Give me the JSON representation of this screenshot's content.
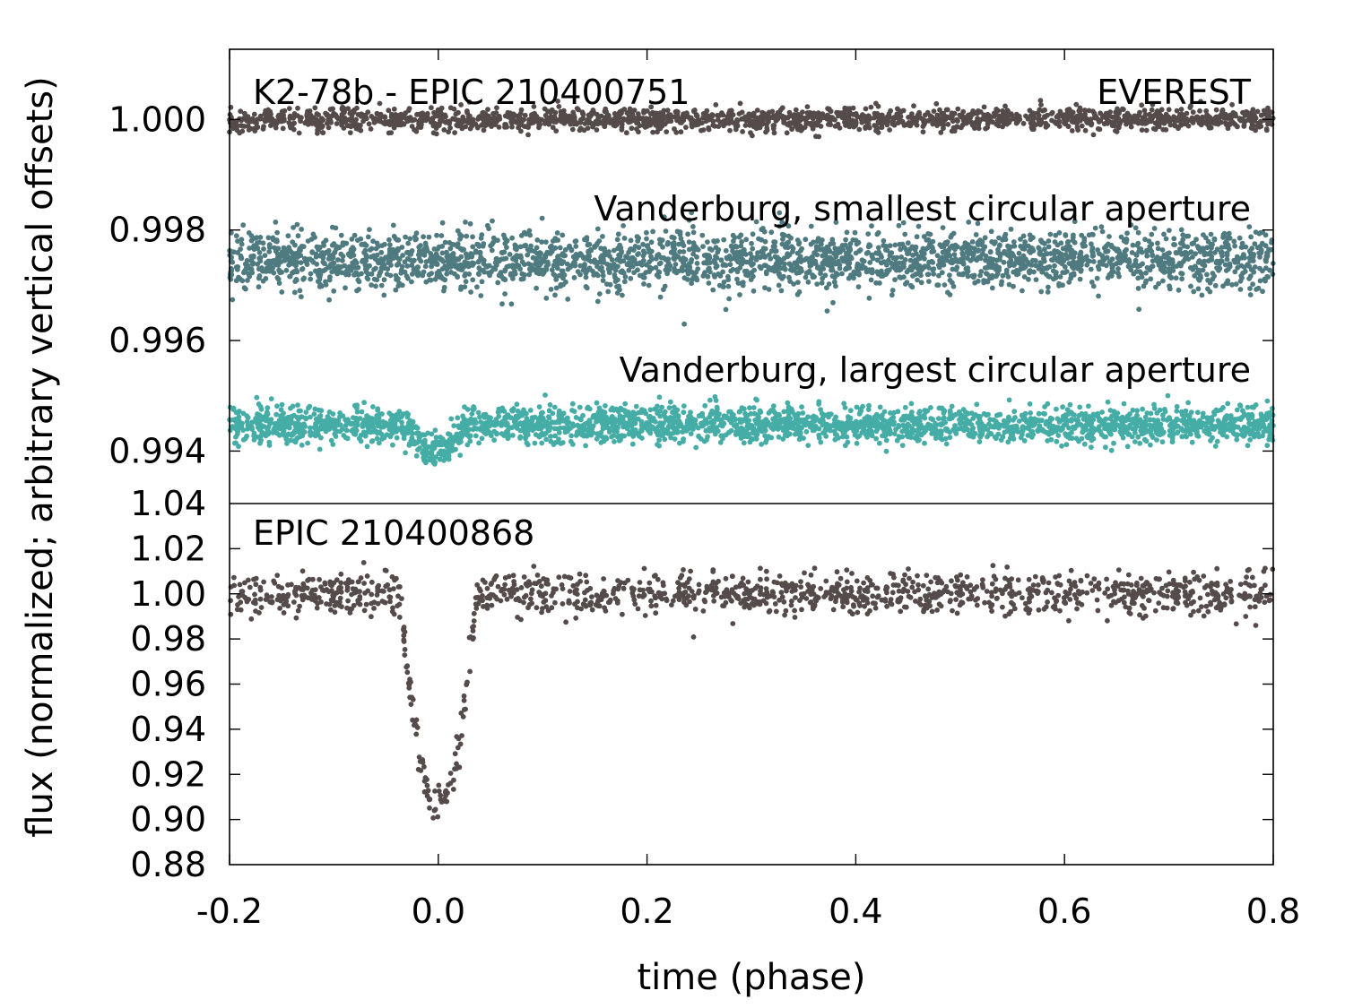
{
  "chart_data": {
    "type": "scatter",
    "xlabel": "time (phase)",
    "ylabel": "flux (normalized; arbitrary vertical offsets)",
    "xlim": [
      -0.2,
      0.8
    ],
    "xticks": [
      "-0.2",
      "0.0",
      "0.2",
      "0.4",
      "0.6",
      "0.8"
    ],
    "xtick_values": [
      -0.2,
      0.0,
      0.2,
      0.4,
      0.6,
      0.8
    ],
    "grid": false,
    "panels": [
      {
        "id": "top",
        "ylim": [
          0.99305,
          1.00127
        ],
        "yticks": [
          "1.000",
          "0.998",
          "0.996",
          "0.994"
        ],
        "ytick_values": [
          1.0,
          0.998,
          0.996,
          0.994
        ],
        "annotations": {
          "left": "K2-78b - EPIC 210400751",
          "right": "EVEREST"
        },
        "series": [
          {
            "label": "",
            "color": "#554b4b",
            "center": 1.0,
            "scatter": 0.0001,
            "n_points": 1800,
            "transit": null
          },
          {
            "label": "Vanderburg, smallest circular aperture",
            "color": "#4f7b80",
            "center": 0.99745,
            "scatter": 0.00026,
            "n_points": 2600,
            "transit": null
          },
          {
            "label": "Vanderburg, largest circular aperture",
            "color": "#45ada6",
            "center": 0.99448,
            "scatter": 0.00016,
            "n_points": 2600,
            "transit": {
              "center": -0.002,
              "half_width": 0.028,
              "depth": 0.00052
            }
          }
        ]
      },
      {
        "id": "bottom",
        "label": "EPIC 210400868",
        "ylim": [
          0.88,
          1.04
        ],
        "yticks": [
          "1.04",
          "1.02",
          "1.00",
          "0.98",
          "0.96",
          "0.94",
          "0.92",
          "0.90",
          "0.88"
        ],
        "ytick_values": [
          1.04,
          1.02,
          1.0,
          0.98,
          0.96,
          0.94,
          0.92,
          0.9,
          0.88
        ],
        "series": [
          {
            "label": "",
            "color": "#554b4b",
            "center": 1.0,
            "scatter": 0.0045,
            "n_points": 1300,
            "transit": {
              "center": 0.0,
              "half_width": 0.037,
              "depth": 0.093
            }
          }
        ]
      }
    ]
  }
}
